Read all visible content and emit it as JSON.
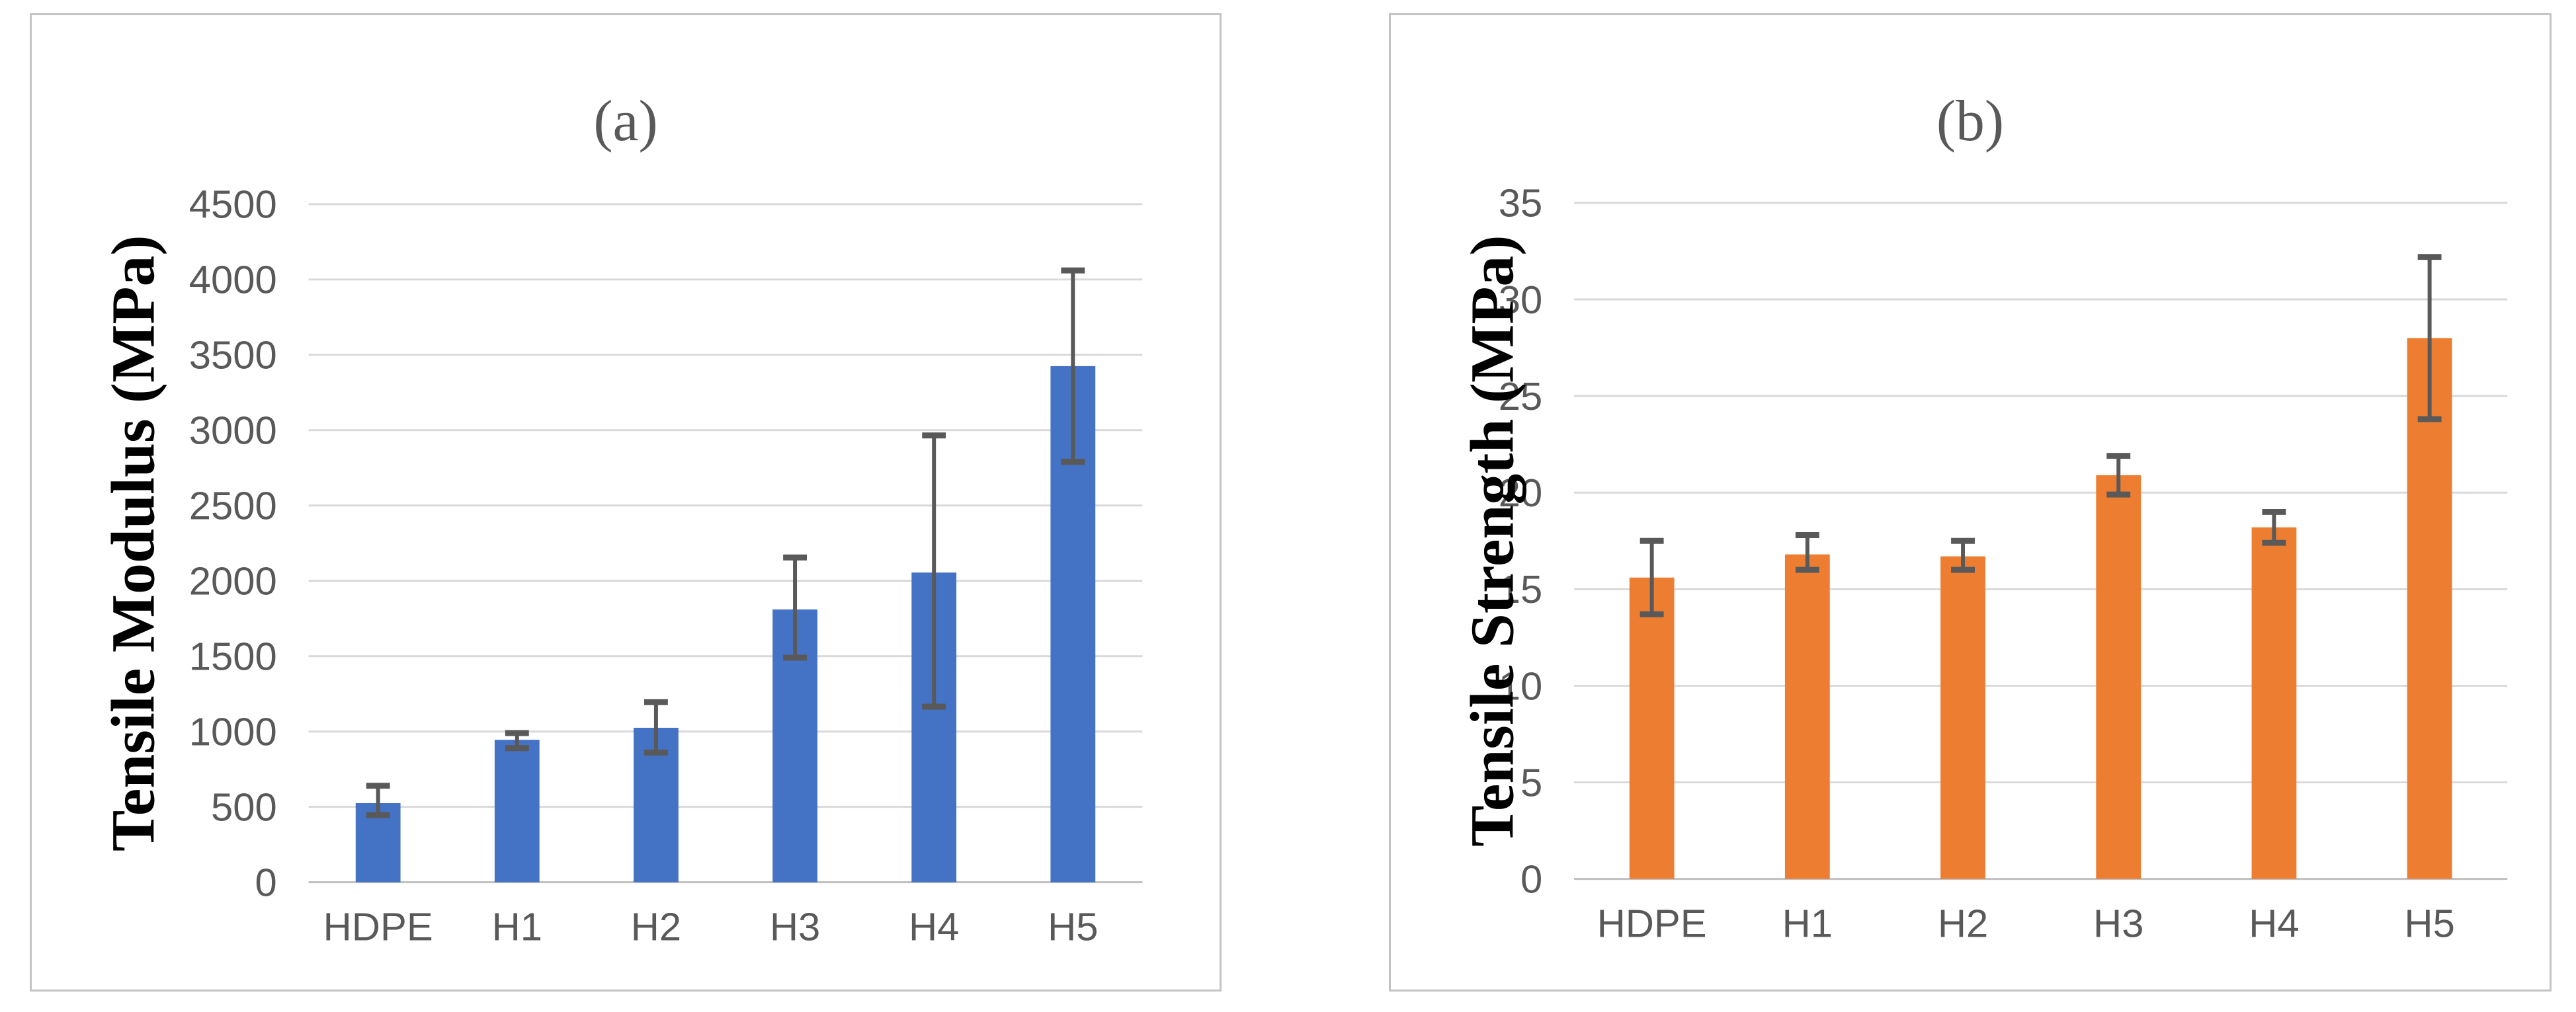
{
  "figure": {
    "description": "Two bar charts comparing mechanical properties of HDPE composites",
    "background_color": "#ffffff",
    "panel_border_color": "#c3c3c3"
  },
  "theme": {
    "gridline_color": "#d9d9d9",
    "baseline_color": "#bfbfbf",
    "tick_text_color": "#595959",
    "category_text_color": "#595959",
    "title_text_color": "#595959",
    "ylabel_text_color": "#000000",
    "error_bar_color": "#595959"
  },
  "chart_data": [
    {
      "type": "bar",
      "title": "(a)",
      "xlabel": "",
      "ylabel": "Tensile Modulus (MPa)",
      "categories": [
        "HDPE",
        "H1",
        "H2",
        "H3",
        "H4",
        "H5"
      ],
      "values": [
        525,
        945,
        1025,
        1810,
        2055,
        3425
      ],
      "error_bars": {
        "low": [
          445,
          890,
          860,
          1490,
          1165,
          2790
        ],
        "high": [
          640,
          990,
          1195,
          2155,
          2965,
          4060
        ]
      },
      "ylim": [
        0,
        4500
      ],
      "ytick_step": 500,
      "ytick_labels": [
        "0",
        "500",
        "1000",
        "1500",
        "2000",
        "2500",
        "3000",
        "3500",
        "4000",
        "4500"
      ],
      "grid": "horizontal",
      "legend": "none",
      "bar_color": "#4472C4"
    },
    {
      "type": "bar",
      "title": "(b)",
      "xlabel": "",
      "ylabel": "Tensile Strength (MPa)",
      "categories": [
        "HDPE",
        "H1",
        "H2",
        "H3",
        "H4",
        "H5"
      ],
      "values": [
        15.6,
        16.8,
        16.7,
        20.9,
        18.2,
        28.0
      ],
      "error_bars": {
        "low": [
          13.7,
          16.0,
          16.0,
          19.9,
          17.4,
          23.8
        ],
        "high": [
          17.5,
          17.8,
          17.5,
          21.9,
          19.0,
          32.2
        ]
      },
      "ylim": [
        0,
        35
      ],
      "ytick_step": 5,
      "ytick_labels": [
        "0",
        "5",
        "10",
        "15",
        "20",
        "25",
        "30",
        "35"
      ],
      "grid": "horizontal",
      "legend": "none",
      "bar_color": "#ED7D31"
    }
  ]
}
